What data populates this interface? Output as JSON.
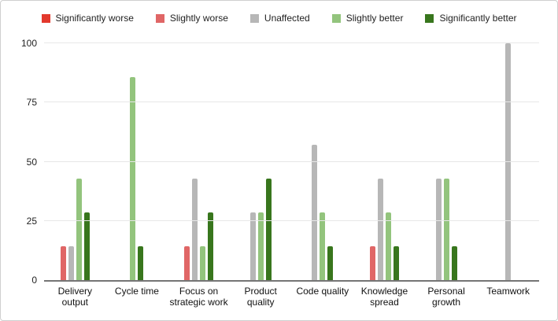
{
  "chart_data": {
    "type": "bar",
    "title": "",
    "xlabel": "",
    "ylabel": "",
    "ylim": [
      0,
      100
    ],
    "yticks": [
      0,
      25,
      50,
      75,
      100
    ],
    "grid": true,
    "legend_position": "top",
    "categories": [
      "Delivery output",
      "Cycle time",
      "Focus on strategic work",
      "Product quality",
      "Code quality",
      "Knowledge spread",
      "Personal growth",
      "Teamwork"
    ],
    "series": [
      {
        "name": "Significantly worse",
        "color": "#e3392d",
        "values": [
          0,
          0,
          0,
          0,
          0,
          0,
          0,
          0
        ]
      },
      {
        "name": "Slightly worse",
        "color": "#e06666",
        "values": [
          14.3,
          0,
          14.3,
          0,
          0,
          14.3,
          0,
          0
        ]
      },
      {
        "name": "Unaffected",
        "color": "#b7b7b7",
        "values": [
          14.3,
          0,
          42.9,
          28.6,
          57.1,
          42.9,
          42.9,
          100
        ]
      },
      {
        "name": "Slightly better",
        "color": "#93c47d",
        "values": [
          42.9,
          85.7,
          14.3,
          28.6,
          28.6,
          28.6,
          42.9,
          0
        ]
      },
      {
        "name": "Significantly better",
        "color": "#38761d",
        "values": [
          28.6,
          14.3,
          28.6,
          42.9,
          14.3,
          14.3,
          14.3,
          0
        ]
      }
    ],
    "colors": {
      "axis_line": "#757575",
      "gridline": "#e7e7e7",
      "background": "#ffffff",
      "border": "#cfcfcf"
    }
  }
}
